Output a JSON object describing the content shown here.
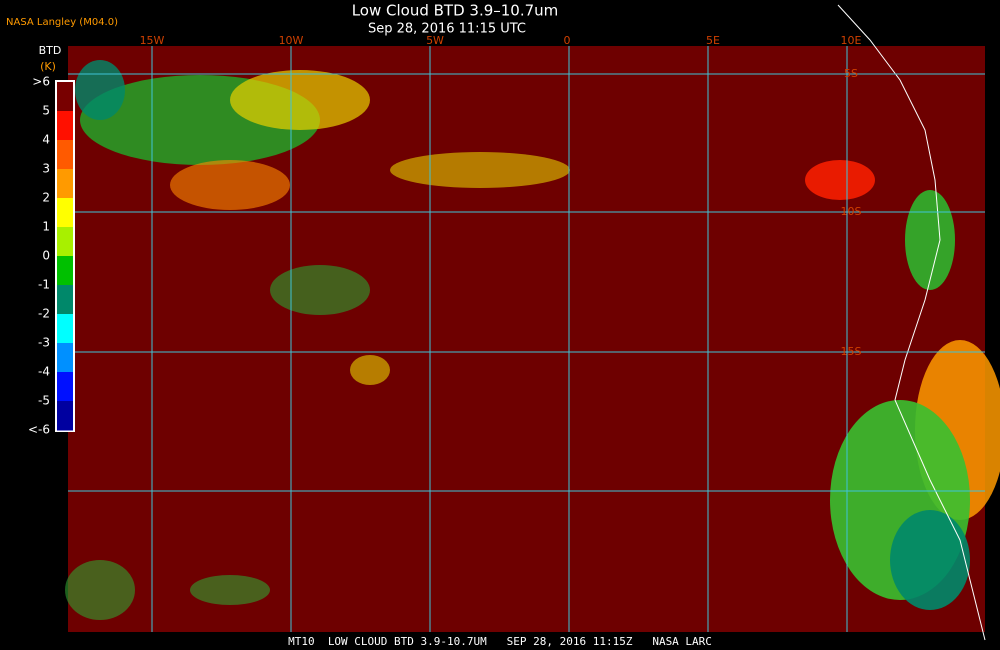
{
  "header": {
    "source": "NASA Langley (M04.0)",
    "title": "Low Cloud BTD 3.9–10.7um",
    "subtitle": "Sep 28, 2016 11:15 UTC"
  },
  "legend": {
    "title": "BTD",
    "unit": "(K)",
    "ticks": [
      ">6",
      "5",
      "4",
      "3",
      "2",
      "1",
      "0",
      "-1",
      "-2",
      "-3",
      "-4",
      "-5",
      "<-6"
    ],
    "colors": [
      "#780000",
      "#ff1000",
      "#ff5a00",
      "#ff9a00",
      "#ffff00",
      "#a8f000",
      "#00c000",
      "#00886a",
      "#00ffff",
      "#0090ff",
      "#0010ff",
      "#0000a0",
      "#600050"
    ]
  },
  "map": {
    "lon_labels": [
      "15W",
      "10W",
      "5W",
      "0",
      "5E",
      "10E"
    ],
    "lat_labels": [
      "5S",
      "10S",
      "15S"
    ]
  },
  "footer": "MT10  LOW CLOUD BTD 3.9-10.7UM   SEP 28, 2016 11:15Z   NASA LARC"
}
